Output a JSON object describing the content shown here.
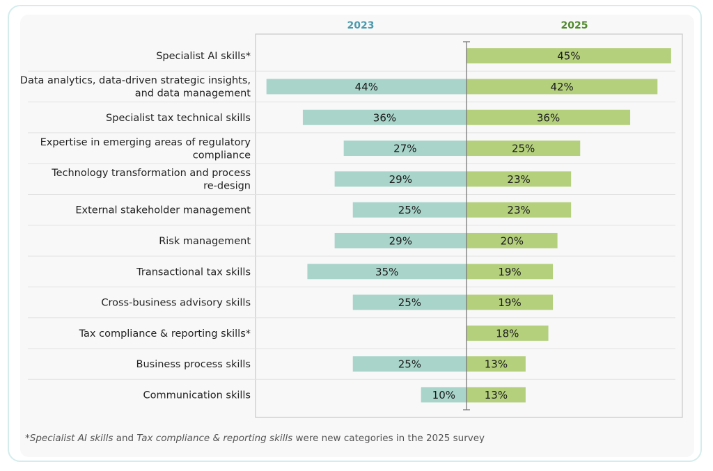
{
  "chart_data": {
    "type": "bar",
    "subtype": "diverging-horizontal",
    "title": "",
    "series": [
      {
        "name": "2023",
        "color": "#a9d4ca",
        "header_color": "#4a9aae",
        "values": [
          null,
          44,
          36,
          27,
          29,
          25,
          29,
          35,
          25,
          null,
          25,
          10
        ]
      },
      {
        "name": "2025",
        "color": "#b4d07d",
        "header_color": "#4f8a2b",
        "values": [
          45,
          42,
          36,
          25,
          23,
          23,
          20,
          19,
          19,
          18,
          13,
          13
        ]
      }
    ],
    "categories": [
      [
        "Specialist AI skills*"
      ],
      [
        "Data analytics, data-driven strategic insights,",
        "and data management"
      ],
      [
        "Specialist tax technical skills"
      ],
      [
        "Expertise in emerging areas of regulatory",
        "compliance"
      ],
      [
        "Technology transformation and process",
        "re-design"
      ],
      [
        "External stakeholder management"
      ],
      [
        "Risk management"
      ],
      [
        "Transactional tax skills"
      ],
      [
        "Cross-business advisory skills"
      ],
      [
        "Tax compliance & reporting skills*"
      ],
      [
        "Business process skills"
      ],
      [
        "Communication skills"
      ]
    ],
    "value_suffix": "%",
    "xlim": [
      -45,
      47
    ],
    "grid": true,
    "legend": "column headers top"
  },
  "footnote": {
    "star": "*",
    "italic1": "Specialist AI skills",
    "and": " and ",
    "italic2": "Tax compliance & reporting skills",
    "rest": " were new categories in the 2025 survey"
  }
}
